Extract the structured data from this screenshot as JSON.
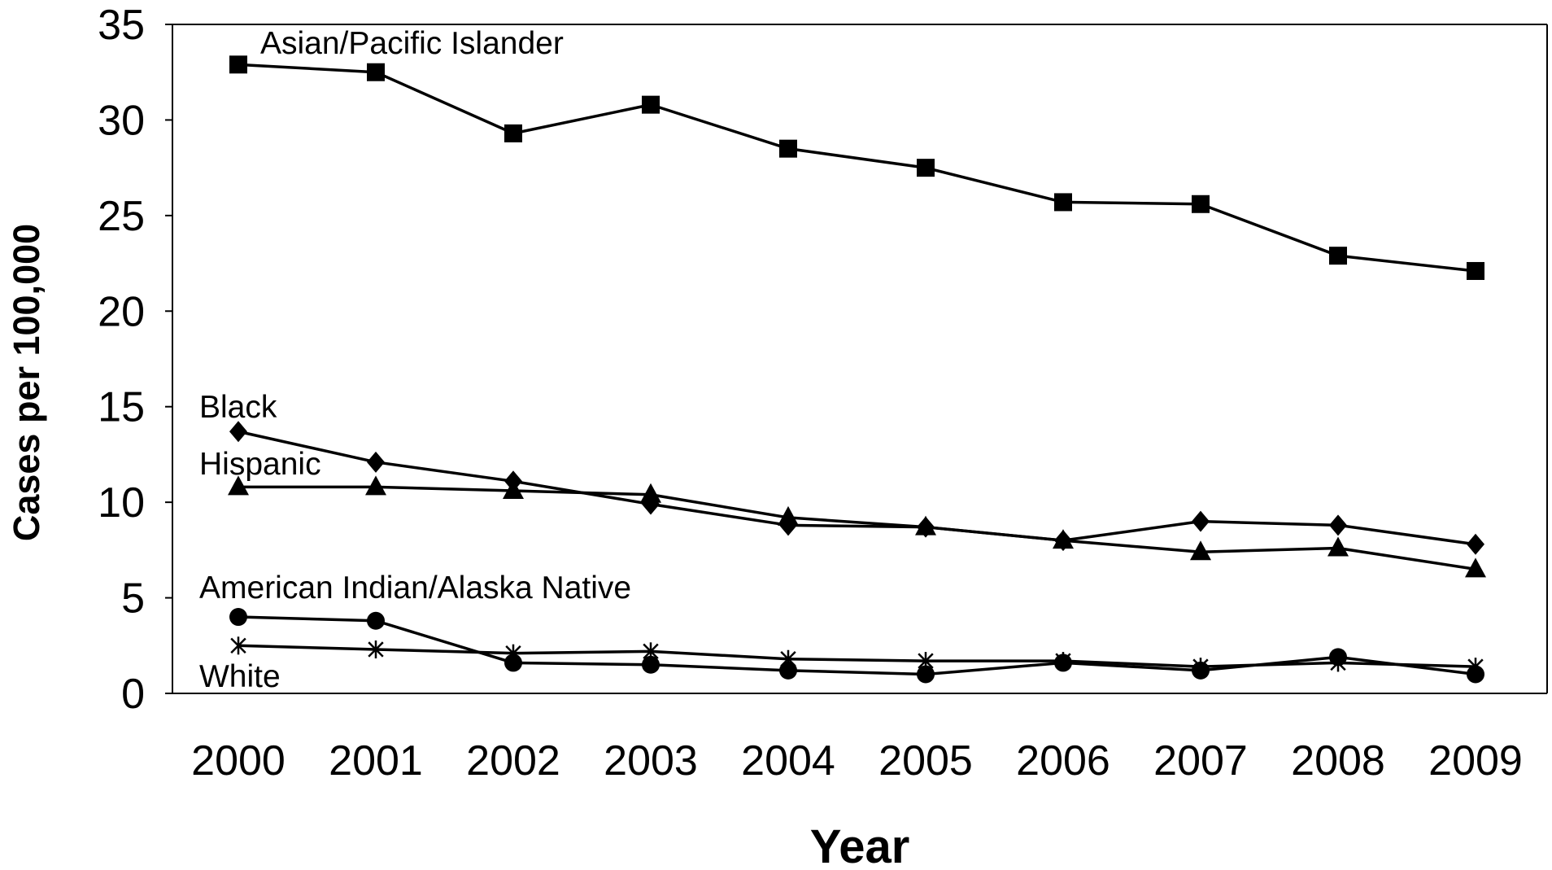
{
  "chart_data": {
    "type": "line",
    "title": "",
    "xlabel": "Year",
    "ylabel": "Cases per 100,000",
    "ylim": [
      0,
      35
    ],
    "yticks": [
      "0",
      "5",
      "10",
      "15",
      "20",
      "25",
      "30",
      "35"
    ],
    "categories": [
      "2000",
      "2001",
      "2002",
      "2003",
      "2004",
      "2005",
      "2006",
      "2007",
      "2008",
      "2009"
    ],
    "grid": false,
    "legend": "none (direct labels)",
    "series": [
      {
        "name": "Asian/Pacific Islander",
        "marker": "square",
        "values": [
          32.9,
          32.5,
          29.3,
          30.8,
          28.5,
          27.5,
          25.7,
          25.6,
          22.9,
          22.1
        ]
      },
      {
        "name": "Black",
        "marker": "diamond",
        "values": [
          13.7,
          12.1,
          11.1,
          9.9,
          8.8,
          8.7,
          8.0,
          9.0,
          8.8,
          7.8
        ]
      },
      {
        "name": "Hispanic",
        "marker": "triangle",
        "values": [
          10.8,
          10.8,
          10.6,
          10.4,
          9.2,
          8.7,
          8.0,
          7.4,
          7.6,
          6.5
        ]
      },
      {
        "name": "American Indian/Alaska Native",
        "marker": "circle",
        "values": [
          4.0,
          3.8,
          1.6,
          1.5,
          1.2,
          1.0,
          1.6,
          1.2,
          1.9,
          1.0
        ]
      },
      {
        "name": "White",
        "marker": "star",
        "values": [
          2.5,
          2.3,
          2.1,
          2.2,
          1.8,
          1.7,
          1.7,
          1.4,
          1.6,
          1.4
        ]
      }
    ]
  }
}
